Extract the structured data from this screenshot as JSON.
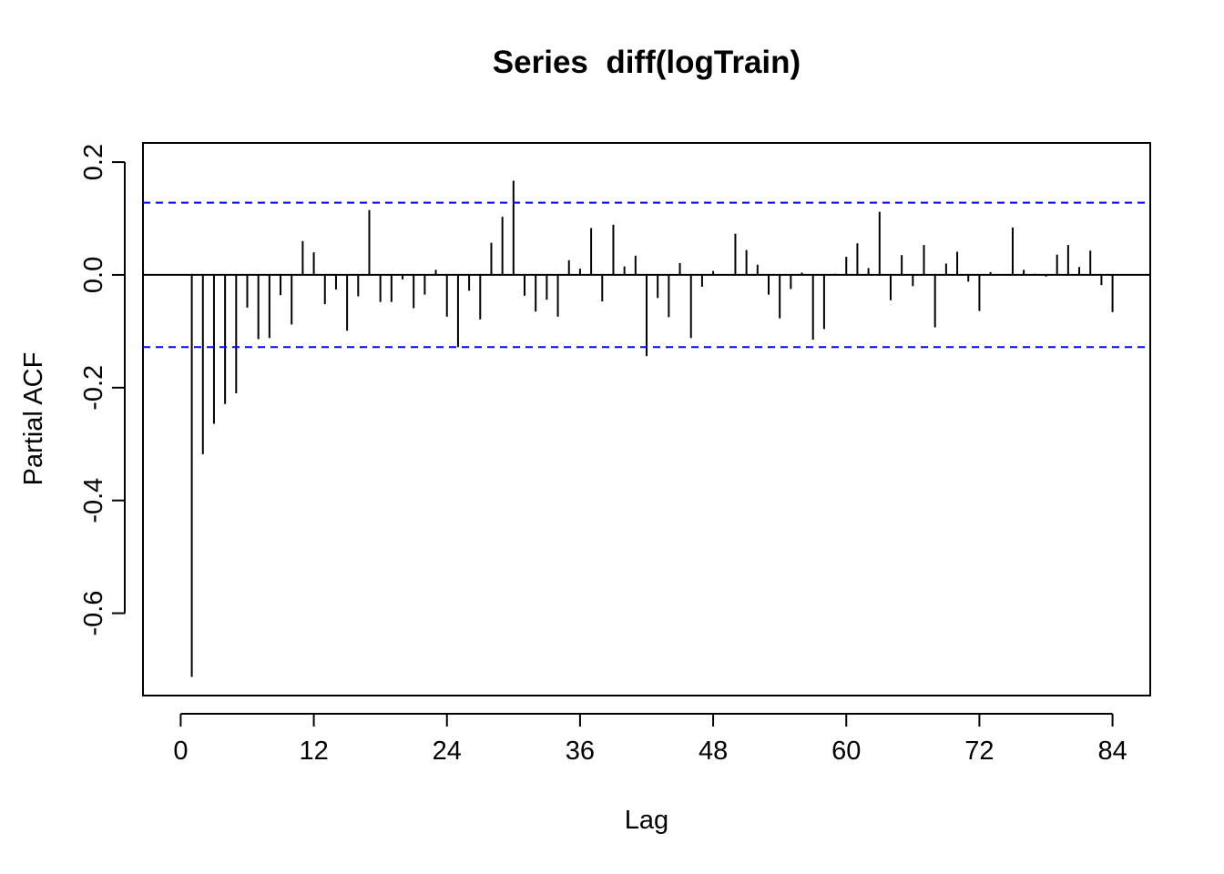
{
  "chart_data": {
    "type": "bar",
    "title": "Series  diff(logTrain)",
    "xlabel": "Lag",
    "ylabel": "Partial ACF",
    "xlim": [
      -3.4,
      87.4
    ],
    "ylim": [
      -0.746,
      0.234
    ],
    "x_ticks": [
      0,
      12,
      24,
      36,
      48,
      60,
      72,
      84
    ],
    "x_tick_labels": [
      "0",
      "12",
      "24",
      "36",
      "48",
      "60",
      "72",
      "84"
    ],
    "y_ticks": [
      -0.6,
      -0.4,
      -0.2,
      0.0,
      0.2
    ],
    "y_tick_labels": [
      "-0.6",
      "-0.4",
      "-0.2",
      "0.0",
      "0.2"
    ],
    "confidence_bound": 0.128,
    "grid": false,
    "series": [
      {
        "lags": [
          1,
          2,
          3,
          4,
          5,
          6,
          7,
          8,
          9,
          10,
          11,
          12,
          13,
          14,
          15,
          16,
          17,
          18,
          19,
          20,
          21,
          22,
          23,
          24,
          25,
          26,
          27,
          28,
          29,
          30,
          31,
          32,
          33,
          34,
          35,
          36,
          37,
          38,
          39,
          40,
          41,
          42,
          43,
          44,
          45,
          46,
          47,
          48,
          49,
          50,
          51,
          52,
          53,
          54,
          55,
          56,
          57,
          58,
          59,
          60,
          61,
          62,
          63,
          64,
          65,
          66,
          67,
          68,
          69,
          70,
          71,
          72,
          73,
          74,
          75,
          76,
          77,
          78,
          79,
          80,
          81,
          82,
          83,
          84
        ],
        "values": [
          -0.713,
          -0.318,
          -0.264,
          -0.229,
          -0.21,
          -0.058,
          -0.114,
          -0.112,
          -0.036,
          -0.088,
          0.06,
          0.04,
          -0.052,
          -0.026,
          -0.099,
          -0.038,
          0.115,
          -0.048,
          -0.048,
          -0.008,
          -0.059,
          -0.035,
          0.009,
          -0.074,
          -0.128,
          -0.028,
          -0.079,
          0.057,
          0.103,
          0.167,
          -0.037,
          -0.065,
          -0.044,
          -0.074,
          0.026,
          0.011,
          0.083,
          -0.047,
          0.089,
          0.015,
          0.034,
          -0.144,
          -0.041,
          -0.075,
          0.021,
          -0.112,
          -0.021,
          0.007,
          0.0,
          0.073,
          0.044,
          0.018,
          -0.035,
          -0.077,
          -0.025,
          0.004,
          -0.115,
          -0.096,
          0.002,
          0.032,
          0.056,
          0.012,
          0.112,
          -0.045,
          0.035,
          -0.02,
          0.053,
          -0.093,
          0.02,
          0.041,
          -0.012,
          -0.064,
          0.005,
          0.0,
          0.084,
          0.009,
          0.002,
          -0.003,
          0.036,
          0.053,
          0.014,
          0.043,
          -0.018,
          -0.066
        ]
      }
    ]
  },
  "colors": {
    "bar": "#000000",
    "confidence_line": "#0000ff",
    "zero_line": "#000000",
    "frame": "#000000"
  }
}
